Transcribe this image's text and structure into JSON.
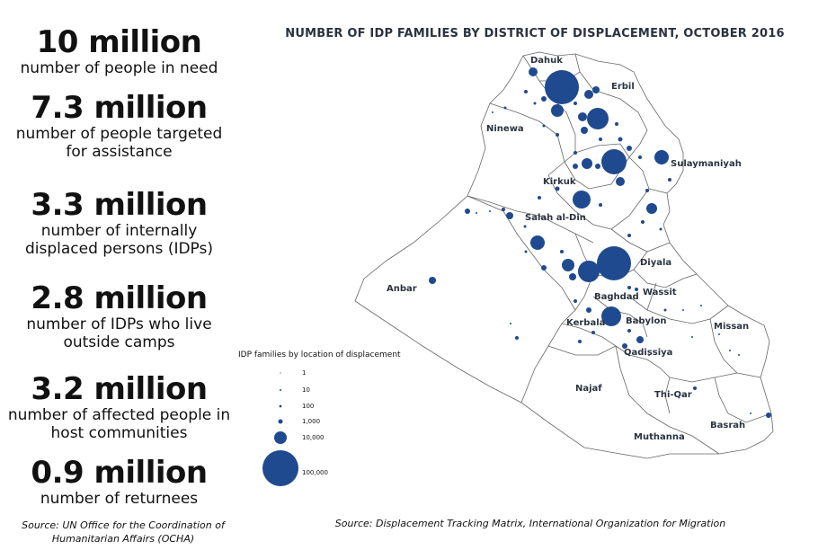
{
  "stats": [
    {
      "value": "10 million",
      "label": "number of people in need"
    },
    {
      "value": "7.3 million",
      "label": "number of people targeted for assistance"
    },
    {
      "value": "3.3 million",
      "label": "number of internally displaced persons (IDPs)"
    },
    {
      "value": "2.8 million",
      "label": "number of IDPs who live outside camps"
    },
    {
      "value": "3.2 million",
      "label": "number of affected people in host communities"
    },
    {
      "value": "0.9 million",
      "label": "number of returnees"
    }
  ],
  "source_left": "Source: UN Office for the Coordination of Humanitarian Affairs (OCHA)",
  "map": {
    "title": "NUMBER OF IDP FAMILIES BY DISTRICT OF DISPLACEMENT, OCTOBER 2016",
    "source": "Source: Displacement Tracking Matrix, International Organization for Migration",
    "colors": {
      "bubble": "#1f4a8f",
      "border": "#555555",
      "text": "#2a3340"
    },
    "provinces": [
      "Dahuk",
      "Erbil",
      "Ninewa",
      "Sulaymaniyah",
      "Kirkuk",
      "Salah al-Din",
      "Diyala",
      "Anbar",
      "Baghdad",
      "Wassit",
      "Kerbala",
      "Babylon",
      "Missan",
      "Qadissiya",
      "Najaf",
      "Thi-Qar",
      "Basrah",
      "Muthanna"
    ],
    "legend": {
      "title": "IDP families by location of displacement",
      "items": [
        "1",
        "10",
        "100",
        "1,000",
        "10,000",
        "100,000"
      ]
    }
  }
}
